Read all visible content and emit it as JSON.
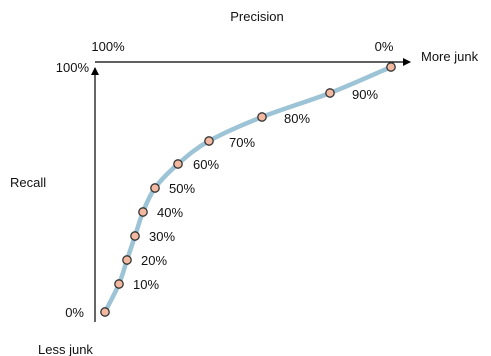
{
  "diagram": {
    "top_axis_label": "Precision",
    "side_axis_label": "Recall",
    "top_left_tick": "100%",
    "top_right_tick": "0%",
    "left_top_tick": "100%",
    "left_bottom_tick": "0%",
    "more_junk_label": "More junk",
    "less_junk_label": "Less junk",
    "curve_color": "#9cc3d6",
    "marker_fill": "#f2b8a0",
    "marker_stroke": "#333333",
    "axis_color": "#000000",
    "points": [
      {
        "label": "10%"
      },
      {
        "label": "20%"
      },
      {
        "label": "30%"
      },
      {
        "label": "40%"
      },
      {
        "label": "50%"
      },
      {
        "label": "60%"
      },
      {
        "label": "70%"
      },
      {
        "label": "80%"
      },
      {
        "label": "90%"
      }
    ]
  }
}
